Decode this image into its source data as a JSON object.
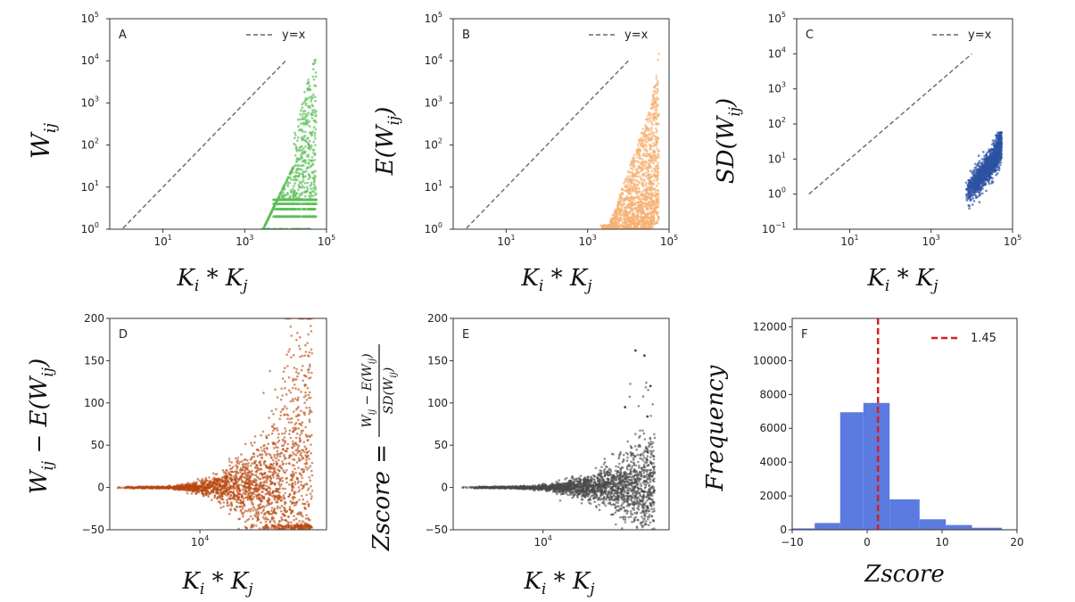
{
  "colors": {
    "A": "#5cbf58",
    "B": "#f6b073",
    "C": "#2c53a3",
    "D": "#b8480f",
    "E": "#4a4a4a",
    "F_bar": "#5b7be0",
    "F_line": "#d42020",
    "ref_line": "#666666"
  },
  "chart_data": [
    {
      "panel": "A",
      "type": "scatter",
      "label": "A",
      "xlabel": "K_i * K_j",
      "ylabel": "W_ij",
      "xscale": "log",
      "yscale": "log",
      "xlim": [
        0.5,
        100000
      ],
      "ylim": [
        1,
        100000
      ],
      "xticks": [
        {
          "value": 10,
          "label": "10",
          "exp": "1"
        },
        {
          "value": 1000,
          "label": "10",
          "exp": "3"
        },
        {
          "value": 100000,
          "label": "10",
          "exp": "5"
        }
      ],
      "yticks": [
        {
          "value": 1,
          "label": "10",
          "exp": "0"
        },
        {
          "value": 10,
          "label": "10",
          "exp": "1"
        },
        {
          "value": 100,
          "label": "10",
          "exp": "2"
        },
        {
          "value": 1000,
          "label": "10",
          "exp": "3"
        },
        {
          "value": 10000,
          "label": "10",
          "exp": "4"
        },
        {
          "value": 100000,
          "label": "10",
          "exp": "5"
        }
      ],
      "legend": {
        "label": "y=x",
        "placement": "top-right"
      },
      "ref_line": {
        "x": [
          0.8,
          10000
        ],
        "y": [
          0.8,
          10000
        ]
      },
      "series_description": "points clustered at x 1e3 to 6e4, y 1 to 4e3 with discrete rows at y=1,2,3,4,5"
    },
    {
      "panel": "B",
      "type": "scatter",
      "label": "B",
      "xlabel": "K_i * K_j",
      "ylabel": "E(W_ij)",
      "xscale": "log",
      "yscale": "log",
      "xlim": [
        0.5,
        100000
      ],
      "ylim": [
        1,
        100000
      ],
      "xticks": [
        {
          "value": 10,
          "label": "10",
          "exp": "1"
        },
        {
          "value": 1000,
          "label": "10",
          "exp": "3"
        },
        {
          "value": 100000,
          "label": "10",
          "exp": "5"
        }
      ],
      "yticks": [
        {
          "value": 1,
          "label": "10",
          "exp": "0"
        },
        {
          "value": 10,
          "label": "10",
          "exp": "1"
        },
        {
          "value": 100,
          "label": "10",
          "exp": "2"
        },
        {
          "value": 1000,
          "label": "10",
          "exp": "3"
        },
        {
          "value": 10000,
          "label": "10",
          "exp": "4"
        },
        {
          "value": 100000,
          "label": "10",
          "exp": "5"
        }
      ],
      "legend": {
        "label": "y=x",
        "placement": "top-right"
      },
      "ref_line": {
        "x": [
          0.8,
          10000
        ],
        "y": [
          0.8,
          10000
        ]
      }
    },
    {
      "panel": "C",
      "type": "scatter",
      "label": "C",
      "xlabel": "K_i * K_j",
      "ylabel": "SD(W_ij)",
      "xscale": "log",
      "yscale": "log",
      "xlim": [
        0.5,
        100000
      ],
      "ylim": [
        0.1,
        100000
      ],
      "xticks": [
        {
          "value": 10,
          "label": "10",
          "exp": "1"
        },
        {
          "value": 1000,
          "label": "10",
          "exp": "3"
        },
        {
          "value": 100000,
          "label": "10",
          "exp": "5"
        }
      ],
      "yticks": [
        {
          "value": 0.1,
          "label": "10",
          "exp": "−1"
        },
        {
          "value": 1,
          "label": "10",
          "exp": "0"
        },
        {
          "value": 10,
          "label": "10",
          "exp": "1"
        },
        {
          "value": 100,
          "label": "10",
          "exp": "2"
        },
        {
          "value": 1000,
          "label": "10",
          "exp": "3"
        },
        {
          "value": 10000,
          "label": "10",
          "exp": "4"
        },
        {
          "value": 100000,
          "label": "10",
          "exp": "5"
        }
      ],
      "legend": {
        "label": "y=x",
        "placement": "top-right"
      },
      "ref_line": {
        "x": [
          1,
          10000
        ],
        "y": [
          1,
          10000
        ]
      }
    },
    {
      "panel": "D",
      "type": "scatter",
      "label": "D",
      "xlabel": "K_i * K_j",
      "ylabel": "W_ij − E(W_ij)",
      "xscale": "log",
      "yscale": "linear",
      "xlim": [
        2500,
        70000
      ],
      "ylim": [
        -50,
        200
      ],
      "xticks": [
        {
          "value": 10000,
          "label": "10",
          "exp": "4"
        }
      ],
      "yticks": [
        {
          "value": -50,
          "label": "−50"
        },
        {
          "value": 0,
          "label": "0"
        },
        {
          "value": 50,
          "label": "50"
        },
        {
          "value": 100,
          "label": "100"
        },
        {
          "value": 150,
          "label": "150"
        },
        {
          "value": 200,
          "label": "200"
        }
      ]
    },
    {
      "panel": "E",
      "type": "scatter",
      "label": "E",
      "xlabel": "K_i * K_j",
      "ylabel": "Zscore = (W_ij − E(W_ij)) / SD(W_ij)",
      "xscale": "log",
      "yscale": "linear",
      "xlim": [
        2500,
        70000
      ],
      "ylim": [
        -50,
        200
      ],
      "xticks": [
        {
          "value": 10000,
          "label": "10",
          "exp": "4"
        }
      ],
      "yticks": [
        {
          "value": -50,
          "label": "−50"
        },
        {
          "value": 0,
          "label": "0"
        },
        {
          "value": 50,
          "label": "50"
        },
        {
          "value": 100,
          "label": "100"
        },
        {
          "value": 150,
          "label": "150"
        },
        {
          "value": 200,
          "label": "200"
        }
      ]
    },
    {
      "panel": "F",
      "type": "bar",
      "label": "F",
      "xlabel": "Zscore",
      "ylabel": "Frequency",
      "xlim": [
        -10,
        20
      ],
      "ylim": [
        0,
        12500
      ],
      "bins": [
        {
          "x0": -10,
          "x1": -7,
          "value": 80
        },
        {
          "x0": -7,
          "x1": -3.6,
          "value": 400
        },
        {
          "x0": -3.6,
          "x1": -0.5,
          "value": 6950
        },
        {
          "x0": -0.5,
          "x1": 3,
          "value": 7500
        },
        {
          "x0": 3,
          "x1": 7,
          "value": 1800
        },
        {
          "x0": 7,
          "x1": 10.5,
          "value": 620
        },
        {
          "x0": 10.5,
          "x1": 14,
          "value": 280
        },
        {
          "x0": 14,
          "x1": 18,
          "value": 120
        },
        {
          "x0": 18,
          "x1": 20,
          "value": 30
        }
      ],
      "vline": {
        "x": 1.45,
        "label": "1.45"
      },
      "xticks": [
        {
          "value": -10,
          "label": "−10"
        },
        {
          "value": 0,
          "label": "0"
        },
        {
          "value": 10,
          "label": "10"
        },
        {
          "value": 20,
          "label": "20"
        }
      ],
      "yticks": [
        {
          "value": 0,
          "label": "0"
        },
        {
          "value": 2000,
          "label": "2000"
        },
        {
          "value": 4000,
          "label": "4000"
        },
        {
          "value": 6000,
          "label": "6000"
        },
        {
          "value": 8000,
          "label": "8000"
        },
        {
          "value": 10000,
          "label": "10000"
        },
        {
          "value": 12000,
          "label": "12000"
        }
      ],
      "legend": {
        "label": "1.45",
        "placement": "top-right"
      }
    }
  ]
}
